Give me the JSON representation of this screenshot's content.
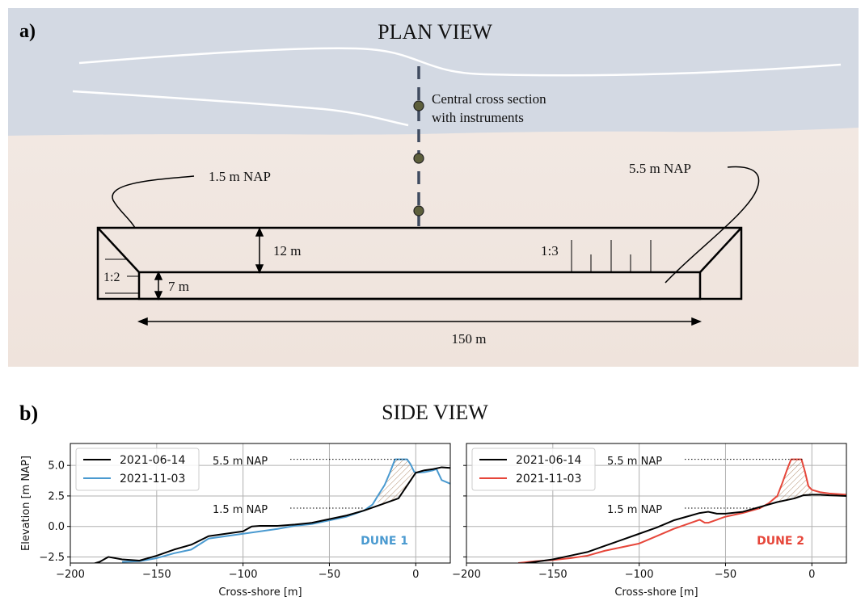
{
  "colors": {
    "water": "#d3d9e3",
    "sand_top": "#f3ebe6",
    "sand_bottom": "#efe3dc",
    "initial_profile": "#000000",
    "dune1_profile": "#4a9ad0",
    "dune2_profile": "#e6463a",
    "instrument_fill": "#5d5f3c",
    "cross_section_line": "#3f4b60",
    "hatch": "#b08a6a",
    "grid": "#b0b0b0"
  },
  "plan_view": {
    "panel_label": "a)",
    "title": "PLAN VIEW",
    "instrument_label_line1": "Central cross section",
    "instrument_label_line2": "with instruments",
    "low_elevation_label": "1.5 m NAP",
    "high_elevation_label": "5.5 m NAP",
    "width_12": "12 m",
    "width_7": "7 m",
    "length": "150 m",
    "slope_side": "1:2",
    "slope_front": "1:3",
    "instrument_count": 3
  },
  "side_view": {
    "panel_label": "b)",
    "title": "SIDE VIEW",
    "ylabel": "Elevation [m NAP]",
    "xlabel": "Cross-shore [m]",
    "annot_high": "5.5 m NAP",
    "annot_low": "1.5 m NAP"
  },
  "chart_data": [
    {
      "type": "line",
      "label": "DUNE 1",
      "xlabel": "Cross-shore [m]",
      "ylabel": "Elevation [m NAP]",
      "xlim": [
        -200,
        20
      ],
      "ylim": [
        -3,
        6.8
      ],
      "xticks": [
        "−200",
        "−150",
        "−100",
        "−50",
        "0"
      ],
      "yticks": [
        "−2.5",
        "0.0",
        "2.5",
        "5.0"
      ],
      "xtick_values": [
        -200,
        -150,
        -100,
        -50,
        0
      ],
      "ytick_values": [
        -2.5,
        0,
        2.5,
        5
      ],
      "grid": true,
      "legend_position": "top-left",
      "hatch_between_series": true,
      "series": [
        {
          "name": "2021-06-14",
          "color": "#000000",
          "x": [
            -190,
            -183,
            -178,
            -170,
            -160,
            -150,
            -140,
            -130,
            -120,
            -110,
            -100,
            -95,
            -90,
            -80,
            -70,
            -60,
            -50,
            -40,
            -30,
            -20,
            -10,
            0,
            5,
            10,
            15,
            20
          ],
          "y": [
            -3.2,
            -2.9,
            -2.5,
            -2.7,
            -2.8,
            -2.4,
            -1.9,
            -1.5,
            -0.8,
            -0.6,
            -0.4,
            0.0,
            0.05,
            0.05,
            0.15,
            0.3,
            0.6,
            0.9,
            1.3,
            1.8,
            2.3,
            4.4,
            4.6,
            4.7,
            4.85,
            4.8
          ]
        },
        {
          "name": "2021-11-03",
          "color": "#4a9ad0",
          "x": [
            -170,
            -160,
            -150,
            -140,
            -130,
            -120,
            -110,
            -100,
            -90,
            -80,
            -70,
            -60,
            -50,
            -40,
            -30,
            -25,
            -22,
            -18,
            -15,
            -12,
            -10,
            -8,
            -5,
            -3,
            -1,
            0,
            5,
            10,
            12,
            15,
            20
          ],
          "y": [
            -2.9,
            -2.85,
            -2.6,
            -2.2,
            -1.9,
            -1.0,
            -0.8,
            -0.6,
            -0.4,
            -0.2,
            0.05,
            0.2,
            0.5,
            0.8,
            1.3,
            1.8,
            2.5,
            3.4,
            4.4,
            5.5,
            5.5,
            5.5,
            5.5,
            5.1,
            4.5,
            4.4,
            4.45,
            4.6,
            4.7,
            3.8,
            3.5
          ]
        }
      ]
    },
    {
      "type": "line",
      "label": "DUNE 2",
      "xlabel": "Cross-shore [m]",
      "ylabel": "",
      "xlim": [
        -200,
        20
      ],
      "ylim": [
        -3,
        6.8
      ],
      "xticks": [
        "−200",
        "−150",
        "−100",
        "−50",
        "0"
      ],
      "yticks": [
        "−2.5",
        "0.0",
        "2.5",
        "5.0"
      ],
      "xtick_values": [
        -200,
        -150,
        -100,
        -50,
        0
      ],
      "ytick_values": [
        -2.5,
        0,
        2.5,
        5
      ],
      "grid": true,
      "legend_position": "top-left",
      "hatch_between_series": true,
      "series": [
        {
          "name": "2021-06-14",
          "color": "#000000",
          "x": [
            -170,
            -160,
            -150,
            -140,
            -130,
            -120,
            -110,
            -100,
            -90,
            -80,
            -70,
            -65,
            -60,
            -55,
            -50,
            -40,
            -30,
            -20,
            -10,
            -5,
            0,
            5,
            10,
            20
          ],
          "y": [
            -3.1,
            -2.9,
            -2.7,
            -2.4,
            -2.1,
            -1.6,
            -1.1,
            -0.6,
            -0.1,
            0.5,
            0.9,
            1.1,
            1.2,
            1.05,
            1.05,
            1.2,
            1.6,
            2.0,
            2.3,
            2.55,
            2.6,
            2.6,
            2.55,
            2.5
          ]
        },
        {
          "name": "2021-11-03",
          "color": "#e6463a",
          "x": [
            -170,
            -160,
            -150,
            -140,
            -130,
            -120,
            -110,
            -100,
            -90,
            -80,
            -72,
            -68,
            -65,
            -62,
            -60,
            -55,
            -50,
            -40,
            -30,
            -25,
            -20,
            -17,
            -14,
            -12,
            -8,
            -6,
            -4,
            -2,
            0,
            5,
            10,
            20
          ],
          "y": [
            -3.0,
            -2.85,
            -2.75,
            -2.6,
            -2.4,
            -2.0,
            -1.7,
            -1.4,
            -0.8,
            -0.2,
            0.2,
            0.4,
            0.55,
            0.3,
            0.3,
            0.55,
            0.8,
            1.1,
            1.5,
            1.9,
            2.5,
            3.6,
            4.8,
            5.5,
            5.5,
            5.5,
            4.5,
            3.3,
            3.0,
            2.8,
            2.7,
            2.6
          ]
        }
      ]
    }
  ]
}
